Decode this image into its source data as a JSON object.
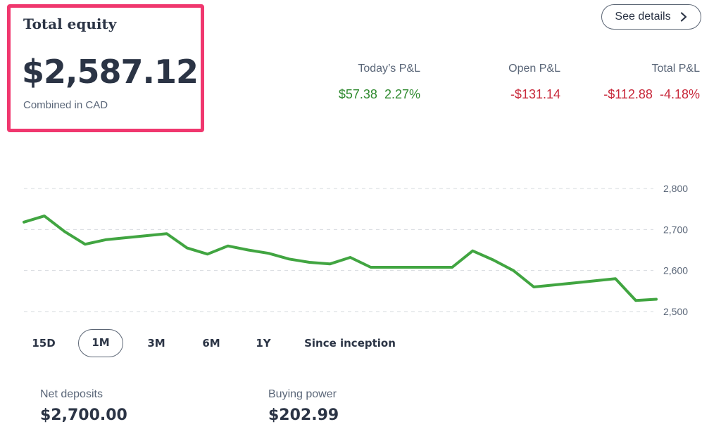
{
  "equity": {
    "title": "Total equity",
    "value": "$2,587.12",
    "subtitle": "Combined in CAD"
  },
  "header": {
    "see_details_label": "See details",
    "see_details_icon": "chevron-right-icon"
  },
  "pnl": {
    "today": {
      "label": "Today’s P&L",
      "amount": "$57.38",
      "percent": "2.27%"
    },
    "open": {
      "label": "Open P&L",
      "amount": "-$131.14"
    },
    "total": {
      "label": "Total P&L",
      "amount": "-$112.88",
      "percent": "-4.18%"
    }
  },
  "colors": {
    "accent_highlight": "#f0376e",
    "positive": "#2f8a2f",
    "negative": "#c8283a",
    "line": "#41a541",
    "text": "#2b3445",
    "muted": "#5a6678"
  },
  "ranges": {
    "items": [
      "15D",
      "1M",
      "3M",
      "6M",
      "1Y",
      "Since inception"
    ],
    "selected": "1M"
  },
  "stats": {
    "net_deposits": {
      "label": "Net deposits",
      "value": "$2,700.00"
    },
    "buying_power": {
      "label": "Buying power",
      "value": "$202.99"
    }
  },
  "chart_data": {
    "type": "line",
    "y_ticks": [
      "2,800",
      "2,700",
      "2,600",
      "2,500"
    ],
    "ylim": [
      2450,
      2830
    ],
    "grid": true,
    "series": [
      {
        "values": [
          2718,
          2733,
          2695,
          2664,
          2675,
          2680,
          2685,
          2690,
          2655,
          2640,
          2660,
          2650,
          2642,
          2628,
          2620,
          2616,
          2632,
          2608,
          2608,
          2608,
          2608,
          2608,
          2648,
          2626,
          2600,
          2560,
          2565,
          2570,
          2575,
          2580,
          2527,
          2530
        ]
      }
    ]
  }
}
